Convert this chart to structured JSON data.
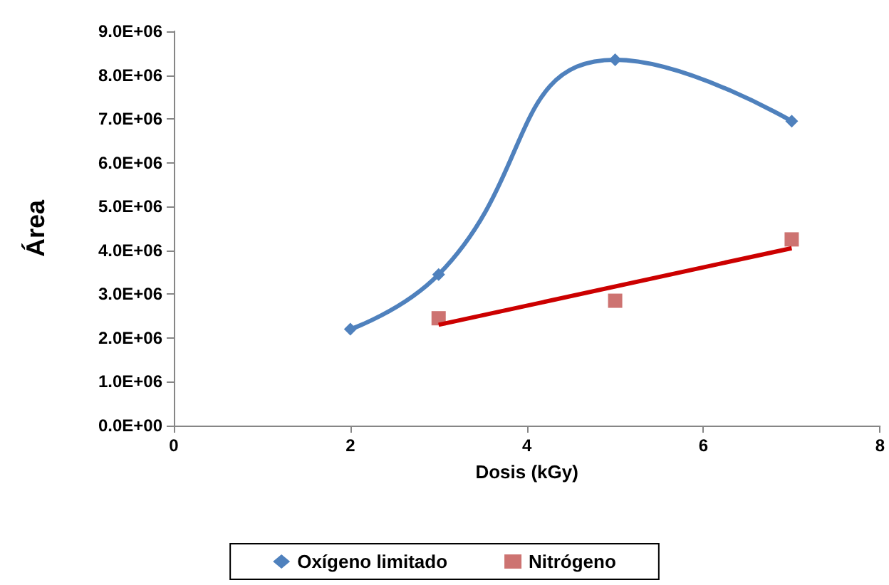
{
  "chart_data": {
    "type": "line",
    "xlabel": "Dosis (kGy)",
    "ylabel": "Área",
    "xlim": [
      0,
      8
    ],
    "xticks": [
      0,
      2,
      4,
      6,
      8
    ],
    "ylim": [
      0,
      9000000
    ],
    "yticks": [
      {
        "value": 0,
        "label": "0.0E+00"
      },
      {
        "value": 1000000,
        "label": "1.0E+06"
      },
      {
        "value": 2000000,
        "label": "2.0E+06"
      },
      {
        "value": 3000000,
        "label": "3.0E+06"
      },
      {
        "value": 4000000,
        "label": "4.0E+06"
      },
      {
        "value": 5000000,
        "label": "5.0E+06"
      },
      {
        "value": 6000000,
        "label": "6.0E+06"
      },
      {
        "value": 7000000,
        "label": "7.0E+06"
      },
      {
        "value": 8000000,
        "label": "8.0E+06"
      },
      {
        "value": 9000000,
        "label": "9.0E+06"
      }
    ],
    "grid": false,
    "legend": "bottom",
    "series": [
      {
        "name": "Oxígeno limitado",
        "color": "#4f81bd",
        "marker": "diamond",
        "x": [
          2,
          3,
          5,
          7
        ],
        "values": [
          2200000,
          3450000,
          8350000,
          6950000
        ]
      },
      {
        "name": "Nitrógeno",
        "type": "scatter",
        "color": "#c0504d",
        "marker": "square",
        "x": [
          3,
          5,
          7
        ],
        "values": [
          2450000,
          2850000,
          4250000
        ]
      },
      {
        "color": "#cc0000",
        "marker": "none",
        "x": [
          3,
          7
        ],
        "values": [
          2300000,
          4050000
        ]
      }
    ]
  }
}
